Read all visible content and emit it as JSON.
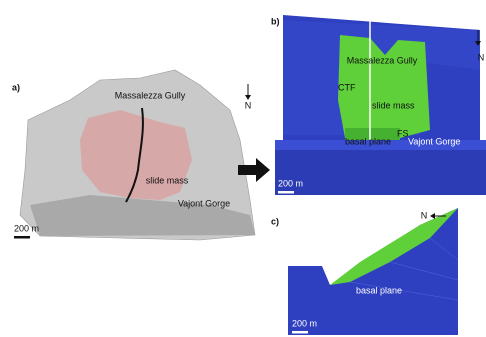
{
  "panels": [
    {
      "label": "a)",
      "north": "N",
      "scale": "200 m",
      "labels": [
        "Massalezza Gully",
        "slide mass",
        "Vajont Gorge"
      ]
    },
    {
      "label": "b)",
      "north": "N",
      "scale": "200 m",
      "labels": [
        "Massalezza Gully",
        "CTF",
        "slide mass",
        "FS",
        "basal plane",
        "Vajont Gorge"
      ]
    },
    {
      "label": "c)",
      "north": "N",
      "scale": "200 m",
      "labels": [
        "basal plane"
      ]
    }
  ]
}
